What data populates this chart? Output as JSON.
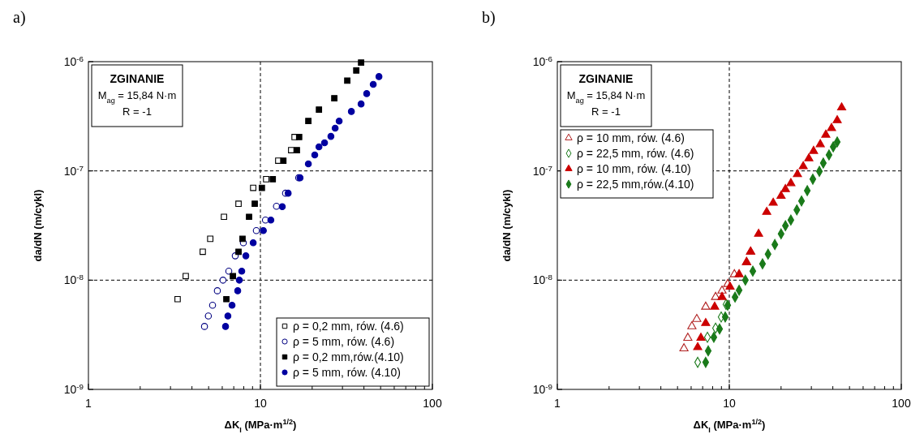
{
  "chart_data": [
    {
      "type": "scatter",
      "title": "a)",
      "xlabel": "ΔK$_{I}$ (MPa·m$^{1/2}$)",
      "ylabel": "da/dN (m/cykl)",
      "log": "xy",
      "xlim": [
        1,
        100
      ],
      "ylim": [
        1e-09,
        1e-06
      ],
      "xticks": [
        1,
        {
          "value": 2,
          "label": null
        },
        {
          "value": 3,
          "label": null
        },
        {
          "value": 4,
          "label": null
        },
        {
          "value": 5,
          "label": null
        },
        {
          "value": 6,
          "label": null
        },
        {
          "value": 7,
          "label": null
        },
        {
          "value": 8,
          "label": null
        },
        {
          "value": 9,
          "label": null
        },
        10,
        {
          "value": 20,
          "label": null
        },
        {
          "value": 30,
          "label": null
        },
        {
          "value": 40,
          "label": null
        },
        {
          "value": 50,
          "label": null
        },
        {
          "value": 60,
          "label": null
        },
        {
          "value": 70,
          "label": null
        },
        {
          "value": 80,
          "label": null
        },
        {
          "value": 90,
          "label": null
        },
        100
      ],
      "yticks": [
        {
          "value": 1e-09,
          "label": "10$^{-9}$"
        },
        {
          "value": 1e-08,
          "label": "10$^{-8}$"
        },
        {
          "value": 1e-07,
          "label": "10$^{-7}$"
        },
        {
          "value": 1e-06,
          "label": "10$^{-6}$"
        }
      ],
      "ref_lines": [
        {
          "axis": "x",
          "value": 10,
          "line_style": "dashed"
        },
        {
          "axis": "y",
          "value": 1e-08,
          "line_style": "dashed"
        },
        {
          "axis": "y",
          "value": 1e-07,
          "line_style": "dashed"
        }
      ],
      "annotations": [
        "ZGINANIE",
        "M$_{ag}$ = 15,84 N·m",
        "R = -1"
      ],
      "legend": "bottom right",
      "grid": false,
      "series": [
        {
          "name": "ρ = 0,2 mm, rów. (4.6)",
          "color": "#000000",
          "marker": "square-open",
          "x": [
            3.3,
            3.68,
            4.62,
            5.11,
            6.14,
            7.46,
            9.08,
            10.8,
            12.7,
            15.1,
            15.8
          ],
          "values": [
            6.7e-09,
            1.09e-08,
            1.82e-08,
            2.39e-08,
            3.8e-08,
            5e-08,
            7e-08,
            8.4e-08,
            1.24e-07,
            1.55e-07,
            2.04e-07
          ]
        },
        {
          "name": "ρ = 5 mm, rów. (4.6)",
          "color": "#000080",
          "marker": "circle-open",
          "x": [
            4.73,
            4.98,
            5.27,
            5.62,
            6.06,
            6.55,
            7.14,
            7.96,
            9.47,
            10.7,
            12.4,
            14.0,
            16.7
          ],
          "values": [
            3.77e-09,
            4.7e-09,
            5.9e-09,
            8e-09,
            1e-08,
            1.21e-08,
            1.67e-08,
            2.2e-08,
            2.84e-08,
            3.55e-08,
            4.75e-08,
            6.25e-08,
            8.65e-08
          ]
        },
        {
          "name": "ρ = 0,2 mm,rów.(4.10)",
          "color": "#000000",
          "marker": "square",
          "x": [
            6.34,
            6.92,
            7.46,
            7.87,
            8.59,
            9.27,
            10.2,
            11.8,
            13.6,
            16.3,
            16.8,
            19.0,
            21.9,
            26.9,
            32.0,
            36.1,
            38.5
          ],
          "values": [
            6.7e-09,
            1.09e-08,
            1.82e-08,
            2.39e-08,
            3.8e-08,
            5e-08,
            7e-08,
            8.4e-08,
            1.24e-07,
            1.55e-07,
            2.04e-07,
            2.86e-07,
            3.64e-07,
            4.63e-07,
            6.7e-07,
            8.3e-07,
            9.8e-07
          ]
        },
        {
          "name": "ρ = 5 mm, rów. (4.10)",
          "color": "#0000a0",
          "marker": "circle",
          "x": [
            6.27,
            6.47,
            6.84,
            7.38,
            7.54,
            7.79,
            8.23,
            9.08,
            10.4,
            11.5,
            13.4,
            14.5,
            17.0,
            19.0,
            20.7,
            21.9,
            23.6,
            25.7,
            27.2,
            28.7,
            33.8,
            38.5,
            41.5,
            45.3,
            48.9
          ],
          "values": [
            3.77e-09,
            4.7e-09,
            5.9e-09,
            8e-09,
            1e-08,
            1.21e-08,
            1.67e-08,
            2.2e-08,
            2.84e-08,
            3.55e-08,
            4.7e-08,
            6.25e-08,
            8.65e-08,
            1.16e-07,
            1.4e-07,
            1.66e-07,
            1.81e-07,
            2.07e-07,
            2.46e-07,
            2.86e-07,
            3.5e-07,
            4.1e-07,
            5.1e-07,
            6.2e-07,
            7.3e-07
          ]
        }
      ]
    },
    {
      "type": "scatter",
      "title": "b)",
      "xlabel": "ΔK$_{I}$ (MPa·m$^{1/2}$)",
      "ylabel": "da/dN (m/cykl)",
      "log": "xy",
      "xlim": [
        1,
        100
      ],
      "ylim": [
        1e-09,
        1e-06
      ],
      "xticks": [
        1,
        {
          "value": 2,
          "label": null
        },
        {
          "value": 3,
          "label": null
        },
        {
          "value": 4,
          "label": null
        },
        {
          "value": 5,
          "label": null
        },
        {
          "value": 6,
          "label": null
        },
        {
          "value": 7,
          "label": null
        },
        {
          "value": 8,
          "label": null
        },
        {
          "value": 9,
          "label": null
        },
        10,
        {
          "value": 20,
          "label": null
        },
        {
          "value": 30,
          "label": null
        },
        {
          "value": 40,
          "label": null
        },
        {
          "value": 50,
          "label": null
        },
        {
          "value": 60,
          "label": null
        },
        {
          "value": 70,
          "label": null
        },
        {
          "value": 80,
          "label": null
        },
        {
          "value": 90,
          "label": null
        },
        100
      ],
      "yticks": [
        {
          "value": 1e-09,
          "label": "10$^{-9}$"
        },
        {
          "value": 1e-08,
          "label": "10$^{-8}$"
        },
        {
          "value": 1e-07,
          "label": "10$^{-7}$"
        },
        {
          "value": 1e-06,
          "label": "10$^{-6}$"
        }
      ],
      "ref_lines": [
        {
          "axis": "x",
          "value": 10,
          "line_style": "dashed"
        },
        {
          "axis": "y",
          "value": 1e-08,
          "line_style": "dashed"
        },
        {
          "axis": "y",
          "value": 1e-07,
          "line_style": "dashed"
        }
      ],
      "annotations": [
        "ZGINANIE",
        "M$_{ag}$ = 15,84 N·m",
        "R = -1"
      ],
      "legend": "top left",
      "grid": false,
      "series": [
        {
          "name": "ρ = 10 mm, rów. (4.6)",
          "color": "#b02020",
          "marker": "triangle-open",
          "x": [
            5.45,
            5.74,
            6.06,
            6.47,
            7.29,
            8.32,
            9.07,
            9.79,
            10.7,
            12.6,
            13.3
          ],
          "values": [
            2.37e-09,
            2.96e-09,
            3.77e-09,
            4.4e-09,
            5.7e-09,
            7e-09,
            8e-09,
            9.2e-09,
            1.13e-08,
            1.46e-08,
            1.82e-08
          ]
        },
        {
          "name": "ρ = 22,5 mm, rów. (4.6)",
          "color": "#1a7a1a",
          "marker": "diamond-open",
          "x": [
            6.55,
            7.46,
            8.32,
            8.97,
            9.57
          ],
          "values": [
            1.77e-09,
            3e-09,
            3.64e-09,
            4.6e-09,
            6e-09
          ]
        },
        {
          "name": "ρ = 10 mm, rów. (4.10)",
          "color": "#cc0000",
          "marker": "triangle",
          "x": [
            6.55,
            6.84,
            7.29,
            8.22,
            9.07,
            10.1,
            11.4,
            12.6,
            13.3,
            14.8,
            16.5,
            18.0,
            20.0,
            21.2,
            22.8,
            24.9,
            26.9,
            29.0,
            30.9,
            33.8,
            36.4,
            39.3,
            42.4,
            45.0
          ],
          "values": [
            2.43e-09,
            2.96e-09,
            4.04e-09,
            5.7e-09,
            7e-09,
            8.7e-09,
            1.13e-08,
            1.46e-08,
            1.82e-08,
            2.65e-08,
            4.2e-08,
            5.1e-08,
            5.9e-08,
            6.8e-08,
            7.7e-08,
            9.3e-08,
            1.1e-07,
            1.3e-07,
            1.52e-07,
            1.75e-07,
            2.14e-07,
            2.46e-07,
            2.9e-07,
            3.8e-07
          ]
        },
        {
          "name": "ρ = 22,5 mm,rów.(4.10)",
          "color": "#1a7a1a",
          "marker": "diamond",
          "x": [
            7.29,
            7.54,
            8.13,
            8.78,
            9.47,
            9.79,
            10.8,
            11.4,
            12.4,
            13.7,
            15.6,
            16.8,
            18.4,
            20.0,
            21.2,
            22.8,
            24.7,
            26.3,
            28.4,
            30.6,
            33.4,
            35.2,
            38.0,
            40.2,
            42.4
          ],
          "values": [
            1.77e-09,
            2.25e-09,
            3e-09,
            3.58e-09,
            4.6e-09,
            5.9e-09,
            7e-09,
            8.1e-09,
            1e-08,
            1.21e-08,
            1.41e-08,
            1.73e-08,
            2.12e-08,
            2.65e-08,
            3.15e-08,
            3.55e-08,
            4.4e-08,
            5.3e-08,
            6.6e-08,
            8.4e-08,
            9.9e-08,
            1.18e-07,
            1.4e-07,
            1.66e-07,
            1.84e-07
          ]
        }
      ]
    }
  ]
}
